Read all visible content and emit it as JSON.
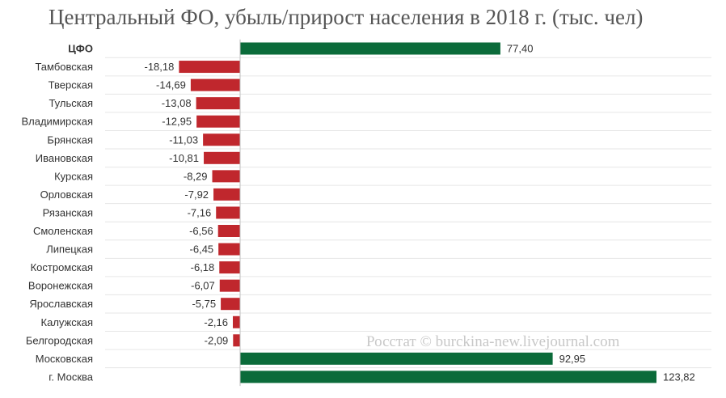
{
  "chart_data": {
    "type": "bar",
    "orientation": "horizontal",
    "title": "Центральный ФО, убыль/прирост населения в 2018 г. (тыс. чел)",
    "categories": [
      "ЦФО",
      "Тамбовская",
      "Тверская",
      "Тульская",
      "Владимирская",
      "Брянская",
      "Ивановская",
      "Курская",
      "Орловская",
      "Рязанская",
      "Смоленская",
      "Липецкая",
      "Костромская",
      "Воронежская",
      "Ярославская",
      "Калужская",
      "Белгородская",
      "Московская",
      "г. Москва"
    ],
    "values": [
      77.4,
      -18.18,
      -14.69,
      -13.08,
      -12.95,
      -11.03,
      -10.81,
      -8.29,
      -7.92,
      -7.16,
      -6.56,
      -6.45,
      -6.18,
      -6.07,
      -5.75,
      -2.16,
      -2.09,
      92.95,
      123.82
    ],
    "value_labels": [
      "77,40",
      "-18,18",
      "-14,69",
      "-13,08",
      "-12,95",
      "-11,03",
      "-10,81",
      "-8,29",
      "-7,92",
      "-7,16",
      "-6,56",
      "-6,45",
      "-6,18",
      "-6,07",
      "-5,75",
      "-2,16",
      "-2,09",
      "92,95",
      "123,82"
    ],
    "bold_categories": [
      "ЦФО"
    ],
    "colors": {
      "positive": "#0b6b3a",
      "negative": "#c0272d",
      "grid": "#e6e6e6",
      "axis": "#bfbfbf"
    },
    "grid": true,
    "watermark": "Росстат © burckina-new.livejournal.com"
  }
}
